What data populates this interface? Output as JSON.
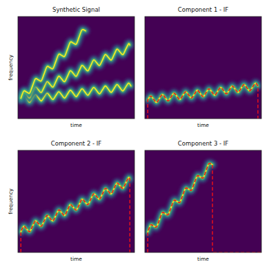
{
  "chart_data": [
    {
      "type": "line",
      "title": "Synthetic Signal",
      "x_label": "time",
      "y_label": "frequency",
      "xlim": [
        0,
        100
      ],
      "ylim": [
        0,
        100
      ],
      "tick_labels": false,
      "series": [
        {
          "color": "#fde725",
          "line_style": "ridge",
          "x": [
            2.5,
            5,
            7.5,
            10,
            12.5,
            15,
            17.5,
            20,
            22.5,
            25,
            27.5,
            30,
            32.5,
            35,
            37.5,
            40,
            42.5,
            45,
            47.5,
            50,
            52.5,
            55,
            57.5,
            60,
            62.5,
            65,
            67.5,
            70,
            72.5,
            75,
            77.5,
            80,
            82.5,
            85,
            87.5,
            90,
            92.5,
            95,
            97
          ],
          "values": [
            18.4,
            22.2,
            19.1,
            15.9,
            19.8,
            23.6,
            20.5,
            17.3,
            21.2,
            25.0,
            21.9,
            18.7,
            22.6,
            26.4,
            23.3,
            20.1,
            24.0,
            27.8,
            24.7,
            21.5,
            25.4,
            29.2,
            26.1,
            22.9,
            26.8,
            30.6,
            27.5,
            24.3,
            28.2,
            32.0,
            28.9,
            25.7,
            29.6,
            33.4,
            30.3,
            27.1,
            31.0,
            34.8,
            32.0
          ]
        },
        {
          "color": "#fde725",
          "line_style": "ridge",
          "x": [
            2.5,
            5,
            7.5,
            10,
            12.5,
            15,
            17.5,
            20,
            22.5,
            25,
            27.5,
            30,
            32.5,
            35,
            37.5,
            40,
            42.5,
            45,
            47.5,
            50,
            52.5,
            55,
            57.5,
            60,
            62.5,
            65,
            67.5,
            70,
            72.5,
            75,
            77.5,
            80,
            82.5,
            85,
            87.5,
            90,
            92.5,
            95,
            96
          ],
          "values": [
            20.3,
            25.7,
            23.0,
            20.3,
            25.6,
            31.0,
            28.3,
            25.6,
            30.9,
            36.3,
            33.6,
            30.9,
            36.2,
            41.6,
            38.9,
            36.2,
            41.5,
            46.9,
            44.2,
            41.5,
            46.8,
            52.2,
            49.5,
            46.8,
            52.1,
            57.5,
            54.8,
            52.1,
            57.4,
            62.8,
            60.1,
            57.4,
            62.7,
            68.1,
            65.4,
            62.7,
            68.0,
            73.4,
            72.0
          ]
        },
        {
          "color": "#fde725",
          "line_style": "ridge",
          "x": [
            2.5,
            5,
            7.5,
            10,
            12.5,
            15,
            17.5,
            20,
            22.5,
            25,
            27.5,
            30,
            32.5,
            35,
            37.5,
            40,
            42.5,
            45,
            47.5,
            50,
            52.5,
            55,
            58
          ],
          "values": [
            20.0,
            27.0,
            26.0,
            25.0,
            32.0,
            39.0,
            38.0,
            37.0,
            44.0,
            51.0,
            50.0,
            49.0,
            56.0,
            63.0,
            62.0,
            61.0,
            68.0,
            75.0,
            74.0,
            73.0,
            80.0,
            87.0,
            86.0
          ]
        }
      ]
    },
    {
      "type": "line",
      "title": "Component 1 - IF",
      "x_label": "time",
      "xlim": [
        0,
        100
      ],
      "ylim": [
        0,
        100
      ],
      "tick_labels": false,
      "series": [
        {
          "color": "#e8101a",
          "line_style": "dashed",
          "x": [
            2.5,
            2.5,
            5,
            7.5,
            10,
            12.5,
            15,
            17.5,
            20,
            22.5,
            25,
            27.5,
            30,
            32.5,
            35,
            37.5,
            40,
            42.5,
            45,
            47.5,
            50,
            52.5,
            55,
            57.5,
            60,
            62.5,
            65,
            67.5,
            70,
            72.5,
            75,
            77.5,
            80,
            82.5,
            85,
            87.5,
            90,
            92.5,
            95,
            97,
            97
          ],
          "values": [
            0,
            18.4,
            22.2,
            19.1,
            15.9,
            19.8,
            23.6,
            20.5,
            17.3,
            21.2,
            25.0,
            21.9,
            18.7,
            22.6,
            26.4,
            23.3,
            20.1,
            24.0,
            27.8,
            24.7,
            21.5,
            25.4,
            29.2,
            26.1,
            22.9,
            26.8,
            30.6,
            27.5,
            24.3,
            28.2,
            32.0,
            28.9,
            25.7,
            29.6,
            33.4,
            30.3,
            27.1,
            31.0,
            34.8,
            32.0,
            0
          ]
        }
      ]
    },
    {
      "type": "line",
      "title": "Component 2 - IF",
      "x_label": "time",
      "y_label": "frequency",
      "xlim": [
        0,
        100
      ],
      "ylim": [
        0,
        100
      ],
      "tick_labels": false,
      "series": [
        {
          "color": "#e8101a",
          "line_style": "dashed",
          "x": [
            2.5,
            2.5,
            5,
            7.5,
            10,
            12.5,
            15,
            17.5,
            20,
            22.5,
            25,
            27.5,
            30,
            32.5,
            35,
            37.5,
            40,
            42.5,
            45,
            47.5,
            50,
            52.5,
            55,
            57.5,
            60,
            62.5,
            65,
            67.5,
            70,
            72.5,
            75,
            77.5,
            80,
            82.5,
            85,
            87.5,
            90,
            92.5,
            95,
            96,
            96
          ],
          "values": [
            0,
            20.3,
            25.7,
            23.0,
            20.3,
            25.6,
            31.0,
            28.3,
            25.6,
            30.9,
            36.3,
            33.6,
            30.9,
            36.2,
            41.6,
            38.9,
            36.2,
            41.5,
            46.9,
            44.2,
            41.5,
            46.8,
            52.2,
            49.5,
            46.8,
            52.1,
            57.5,
            54.8,
            52.1,
            57.4,
            62.8,
            60.1,
            57.4,
            62.7,
            68.1,
            65.4,
            62.7,
            68.0,
            73.4,
            72.0,
            0
          ]
        }
      ]
    },
    {
      "type": "line",
      "title": "Component 3 - IF",
      "x_label": "time",
      "xlim": [
        0,
        100
      ],
      "ylim": [
        0,
        100
      ],
      "tick_labels": false,
      "series": [
        {
          "color": "#e8101a",
          "line_style": "dashed",
          "x": [
            2.5,
            2.5,
            5,
            7.5,
            10,
            12.5,
            15,
            17.5,
            20,
            22.5,
            25,
            27.5,
            30,
            32.5,
            35,
            37.5,
            40,
            42.5,
            45,
            47.5,
            50,
            52.5,
            55,
            58,
            58,
            100
          ],
          "values": [
            0,
            20.0,
            27.0,
            26.0,
            25.0,
            32.0,
            39.0,
            38.0,
            37.0,
            44.0,
            51.0,
            50.0,
            49.0,
            56.0,
            63.0,
            62.0,
            61.0,
            68.0,
            75.0,
            74.0,
            73.0,
            80.0,
            87.0,
            86.0,
            0,
            0
          ]
        }
      ]
    }
  ]
}
